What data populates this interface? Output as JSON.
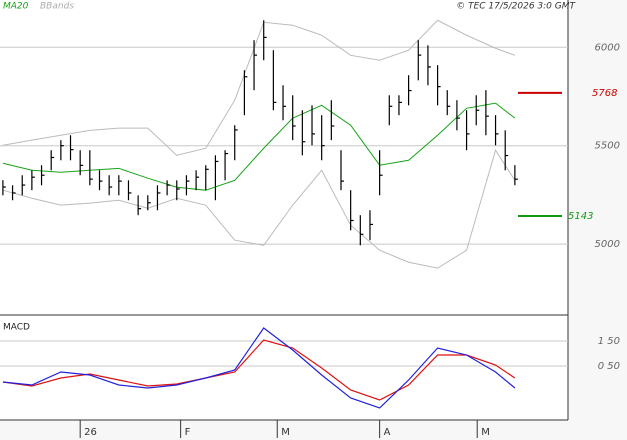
{
  "chart_data": {
    "type": "ohlc",
    "credit": "© TEC 17/5/2026 3:0 GMT",
    "x": [
      0,
      1,
      2,
      3,
      4,
      5,
      6,
      7,
      8,
      9,
      10,
      11,
      12,
      13,
      14,
      15,
      16,
      17,
      18,
      19,
      20,
      21,
      22,
      23,
      24,
      25,
      26,
      27,
      28,
      29,
      30,
      31,
      32,
      33,
      34,
      35,
      36,
      37,
      38,
      39,
      40,
      41,
      42,
      43,
      44,
      45,
      46,
      47,
      48,
      49,
      50,
      51,
      52,
      53
    ],
    "high": [
      5325,
      5299,
      5350,
      5375,
      5401,
      5477,
      5528,
      5553,
      5477,
      5477,
      5375,
      5350,
      5350,
      5324,
      5248,
      5248,
      5299,
      5324,
      5324,
      5350,
      5375,
      5401,
      5451,
      5477,
      5604,
      5883,
      6036,
      6137,
      5985,
      5807,
      5756,
      5680,
      5705,
      5655,
      5731,
      5477,
      5274,
      5147,
      5172,
      5477,
      5756,
      5756,
      5858,
      6036,
      6010,
      5909,
      5782,
      5731,
      5680,
      5756,
      5782,
      5655,
      5578,
      5401
    ],
    "low": [
      5248,
      5223,
      5248,
      5274,
      5299,
      5375,
      5426,
      5426,
      5350,
      5299,
      5274,
      5248,
      5248,
      5223,
      5147,
      5172,
      5172,
      5248,
      5223,
      5248,
      5274,
      5274,
      5223,
      5324,
      5426,
      5655,
      5782,
      5934,
      5680,
      5629,
      5528,
      5451,
      5502,
      5426,
      5528,
      5274,
      5070,
      4994,
      5020,
      5248,
      5604,
      5655,
      5705,
      5832,
      5807,
      5705,
      5655,
      5578,
      5477,
      5604,
      5553,
      5502,
      5375,
      5299
    ],
    "close": [
      5290,
      5260,
      5300,
      5340,
      5350,
      5440,
      5500,
      5480,
      5400,
      5330,
      5320,
      5290,
      5320,
      5260,
      5180,
      5210,
      5260,
      5300,
      5280,
      5320,
      5340,
      5380,
      5420,
      5460,
      5580,
      5850,
      5960,
      6050,
      5720,
      5700,
      5600,
      5520,
      5560,
      5500,
      5600,
      5320,
      5120,
      5050,
      5100,
      5350,
      5700,
      5720,
      5780,
      5960,
      5900,
      5800,
      5700,
      5640,
      5560,
      5680,
      5650,
      5560,
      5450,
      5330
    ],
    "bar_color": "#000000",
    "xlim": [
      -0.3,
      58.5
    ],
    "xticks": [
      {
        "value": 8,
        "label": "26"
      },
      {
        "value": 18.4,
        "label": "F"
      },
      {
        "value": 28.4,
        "label": "M"
      },
      {
        "value": 39,
        "label": "A"
      },
      {
        "value": 49.1,
        "label": "M"
      }
    ],
    "ylim": [
      4640,
      6240
    ],
    "yticks": [
      5000,
      5500,
      6000
    ],
    "grid": true,
    "ma20": {
      "name": "MA20",
      "color": "#16a316",
      "x": [
        0,
        3,
        6,
        9,
        12,
        15,
        18,
        21,
        24,
        27,
        30,
        33,
        36,
        39,
        42,
        45,
        48,
        51,
        53
      ],
      "values": [
        5411,
        5375,
        5365,
        5375,
        5385,
        5335,
        5289,
        5274,
        5324,
        5487,
        5640,
        5705,
        5604,
        5401,
        5426,
        5553,
        5690,
        5716,
        5640
      ]
    },
    "bbands": {
      "name": "BBands",
      "color": "#bbbbbb",
      "x": [
        0,
        3,
        6,
        9,
        12,
        15,
        18,
        21,
        24,
        27,
        30,
        33,
        36,
        39,
        42,
        45,
        48,
        51,
        53
      ],
      "upper": [
        5502,
        5528,
        5553,
        5578,
        5589,
        5589,
        5451,
        5487,
        5731,
        6127,
        6112,
        6061,
        5959,
        5934,
        5985,
        6137,
        6061,
        5995,
        5959
      ],
      "lower": [
        5274,
        5233,
        5198,
        5208,
        5223,
        5182,
        5233,
        5198,
        5020,
        4994,
        5198,
        5375,
        5096,
        4969,
        4908,
        4878,
        4969,
        5477,
        5324
      ]
    },
    "annotations": [
      {
        "label": "5768",
        "value": 5768,
        "color": "#cc0000"
      },
      {
        "label": "5143",
        "value": 5143,
        "color": "#119911"
      }
    ],
    "macd": {
      "label": "MACD",
      "ylim": [
        -1.66,
        2.5
      ],
      "yticks": [
        {
          "value": 1.5,
          "label": "1 50"
        },
        {
          "value": 0.5,
          "label": "0 50"
        }
      ],
      "x": [
        0,
        3,
        6,
        9,
        12,
        15,
        18,
        21,
        24,
        27,
        30,
        33,
        36,
        39,
        42,
        45,
        48,
        51,
        53
      ],
      "macd_line": {
        "color": "#2222dd",
        "values": [
          -0.14,
          -0.26,
          0.26,
          0.14,
          -0.26,
          -0.38,
          -0.26,
          0.02,
          0.34,
          2.02,
          1.14,
          0.14,
          -0.78,
          -1.18,
          -0.06,
          1.22,
          0.94,
          0.26,
          -0.38
        ]
      },
      "signal": {
        "color": "#dd1111",
        "values": [
          -0.14,
          -0.3,
          0.02,
          0.18,
          -0.06,
          -0.3,
          -0.22,
          0.02,
          0.26,
          1.54,
          1.22,
          0.42,
          -0.46,
          -0.86,
          -0.26,
          0.94,
          0.94,
          0.54,
          0.02
        ]
      }
    }
  }
}
